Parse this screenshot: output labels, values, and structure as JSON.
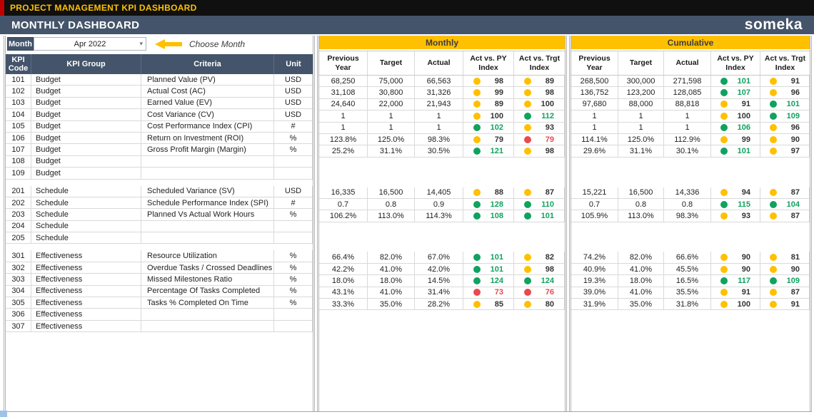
{
  "title_bar": {
    "title": "PROJECT MANAGEMENT KPI DASHBOARD"
  },
  "header": {
    "title": "MONTHLY DASHBOARD",
    "logo": "someka"
  },
  "month_selector": {
    "label": "Month",
    "value": "Apr 2022",
    "hint": "Choose Month"
  },
  "sections": {
    "monthly": "Monthly",
    "cumulative": "Cumulative"
  },
  "left_headers": [
    "KPI Code",
    "KPI Group",
    "Criteria",
    "Unit"
  ],
  "value_headers": [
    "Previous Year",
    "Target",
    "Actual",
    "Act vs. PY Index",
    "Act vs. Trgt Index"
  ],
  "colors": {
    "accent": "#FFC000",
    "header": "#44546A",
    "green": "#10A25F",
    "yellow": "#FFC000",
    "red": "#E9494F",
    "dark_text": "#333333"
  },
  "rows": [
    {
      "code": "101",
      "group": "Budget",
      "criteria": "Planned Value (PV)",
      "unit": "USD",
      "m": [
        "68,250",
        "75,000",
        "66,563"
      ],
      "mi": [
        [
          "98",
          "yellow"
        ],
        [
          "89",
          "yellow"
        ]
      ],
      "c": [
        "268,500",
        "300,000",
        "271,598"
      ],
      "ci": [
        [
          "101",
          "green"
        ],
        [
          "91",
          "yellow"
        ]
      ]
    },
    {
      "code": "102",
      "group": "Budget",
      "criteria": "Actual Cost (AC)",
      "unit": "USD",
      "m": [
        "31,108",
        "30,800",
        "31,326"
      ],
      "mi": [
        [
          "99",
          "yellow"
        ],
        [
          "98",
          "yellow"
        ]
      ],
      "c": [
        "136,752",
        "123,200",
        "128,085"
      ],
      "ci": [
        [
          "107",
          "green"
        ],
        [
          "96",
          "yellow"
        ]
      ]
    },
    {
      "code": "103",
      "group": "Budget",
      "criteria": "Earned Value (EV)",
      "unit": "USD",
      "m": [
        "24,640",
        "22,000",
        "21,943"
      ],
      "mi": [
        [
          "89",
          "yellow"
        ],
        [
          "100",
          "yellow"
        ]
      ],
      "c": [
        "97,680",
        "88,000",
        "88,818"
      ],
      "ci": [
        [
          "91",
          "yellow"
        ],
        [
          "101",
          "green"
        ]
      ]
    },
    {
      "code": "104",
      "group": "Budget",
      "criteria": "Cost Variance (CV)",
      "unit": "USD",
      "m": [
        "1",
        "1",
        "1"
      ],
      "mi": [
        [
          "100",
          "yellow"
        ],
        [
          "112",
          "green"
        ]
      ],
      "c": [
        "1",
        "1",
        "1"
      ],
      "ci": [
        [
          "100",
          "yellow"
        ],
        [
          "109",
          "green"
        ]
      ]
    },
    {
      "code": "105",
      "group": "Budget",
      "criteria": "Cost Performance Index (CPI)",
      "unit": "#",
      "m": [
        "1",
        "1",
        "1"
      ],
      "mi": [
        [
          "102",
          "green"
        ],
        [
          "93",
          "yellow"
        ]
      ],
      "c": [
        "1",
        "1",
        "1"
      ],
      "ci": [
        [
          "106",
          "green"
        ],
        [
          "96",
          "yellow"
        ]
      ]
    },
    {
      "code": "106",
      "group": "Budget",
      "criteria": "Return on Investment (ROI)",
      "unit": "%",
      "m": [
        "123.8%",
        "125.0%",
        "98.3%"
      ],
      "mi": [
        [
          "79",
          "yellow"
        ],
        [
          "79",
          "red"
        ]
      ],
      "c": [
        "114.1%",
        "125.0%",
        "112.9%"
      ],
      "ci": [
        [
          "99",
          "yellow"
        ],
        [
          "90",
          "yellow"
        ]
      ]
    },
    {
      "code": "107",
      "group": "Budget",
      "criteria": "Gross Profit Margin (Margin)",
      "unit": "%",
      "m": [
        "25.2%",
        "31.1%",
        "30.5%"
      ],
      "mi": [
        [
          "121",
          "green"
        ],
        [
          "98",
          "yellow"
        ]
      ],
      "c": [
        "29.6%",
        "31.1%",
        "30.1%"
      ],
      "ci": [
        [
          "101",
          "green"
        ],
        [
          "97",
          "yellow"
        ]
      ]
    },
    {
      "code": "108",
      "group": "Budget",
      "criteria": "",
      "unit": ""
    },
    {
      "code": "109",
      "group": "Budget",
      "criteria": "",
      "unit": ""
    },
    {
      "type": "spacer"
    },
    {
      "code": "201",
      "group": "Schedule",
      "criteria": "Scheduled Variance (SV)",
      "unit": "USD",
      "m": [
        "16,335",
        "16,500",
        "14,405"
      ],
      "mi": [
        [
          "88",
          "yellow"
        ],
        [
          "87",
          "yellow"
        ]
      ],
      "c": [
        "15,221",
        "16,500",
        "14,336"
      ],
      "ci": [
        [
          "94",
          "yellow"
        ],
        [
          "87",
          "yellow"
        ]
      ]
    },
    {
      "code": "202",
      "group": "Schedule",
      "criteria": "Schedule Performance Index (SPI)",
      "unit": "#",
      "m": [
        "0.7",
        "0.8",
        "0.9"
      ],
      "mi": [
        [
          "128",
          "green"
        ],
        [
          "110",
          "green"
        ]
      ],
      "c": [
        "0.7",
        "0.8",
        "0.8"
      ],
      "ci": [
        [
          "115",
          "green"
        ],
        [
          "104",
          "green"
        ]
      ]
    },
    {
      "code": "203",
      "group": "Schedule",
      "criteria": "Planned Vs Actual Work Hours",
      "unit": "%",
      "m": [
        "106.2%",
        "113.0%",
        "114.3%"
      ],
      "mi": [
        [
          "108",
          "green"
        ],
        [
          "101",
          "green"
        ]
      ],
      "c": [
        "105.9%",
        "113.0%",
        "98.3%"
      ],
      "ci": [
        [
          "93",
          "yellow"
        ],
        [
          "87",
          "yellow"
        ]
      ]
    },
    {
      "code": "204",
      "group": "Schedule",
      "criteria": "",
      "unit": ""
    },
    {
      "code": "205",
      "group": "Schedule",
      "criteria": "",
      "unit": ""
    },
    {
      "type": "spacer"
    },
    {
      "code": "301",
      "group": "Effectiveness",
      "criteria": "Resource Utilization",
      "unit": "%",
      "m": [
        "66.4%",
        "82.0%",
        "67.0%"
      ],
      "mi": [
        [
          "101",
          "green"
        ],
        [
          "82",
          "yellow"
        ]
      ],
      "c": [
        "74.2%",
        "82.0%",
        "66.6%"
      ],
      "ci": [
        [
          "90",
          "yellow"
        ],
        [
          "81",
          "yellow"
        ]
      ]
    },
    {
      "code": "302",
      "group": "Effectiveness",
      "criteria": "Overdue Tasks / Crossed Deadlines",
      "unit": "%",
      "m": [
        "42.2%",
        "41.0%",
        "42.0%"
      ],
      "mi": [
        [
          "101",
          "green"
        ],
        [
          "98",
          "yellow"
        ]
      ],
      "c": [
        "40.9%",
        "41.0%",
        "45.5%"
      ],
      "ci": [
        [
          "90",
          "yellow"
        ],
        [
          "90",
          "yellow"
        ]
      ]
    },
    {
      "code": "303",
      "group": "Effectiveness",
      "criteria": "Missed Milestones Ratio",
      "unit": "%",
      "m": [
        "18.0%",
        "18.0%",
        "14.5%"
      ],
      "mi": [
        [
          "124",
          "green"
        ],
        [
          "124",
          "green"
        ]
      ],
      "c": [
        "19.3%",
        "18.0%",
        "16.5%"
      ],
      "ci": [
        [
          "117",
          "green"
        ],
        [
          "109",
          "green"
        ]
      ]
    },
    {
      "code": "304",
      "group": "Effectiveness",
      "criteria": "Percentage Of Tasks Completed",
      "unit": "%",
      "m": [
        "43.1%",
        "41.0%",
        "31.4%"
      ],
      "mi": [
        [
          "73",
          "red"
        ],
        [
          "76",
          "red"
        ]
      ],
      "c": [
        "39.0%",
        "41.0%",
        "35.5%"
      ],
      "ci": [
        [
          "91",
          "yellow"
        ],
        [
          "87",
          "yellow"
        ]
      ]
    },
    {
      "code": "305",
      "group": "Effectiveness",
      "criteria": "Tasks % Completed On Time",
      "unit": "%",
      "m": [
        "33.3%",
        "35.0%",
        "28.2%"
      ],
      "mi": [
        [
          "85",
          "yellow"
        ],
        [
          "80",
          "yellow"
        ]
      ],
      "c": [
        "31.9%",
        "35.0%",
        "31.8%"
      ],
      "ci": [
        [
          "100",
          "yellow"
        ],
        [
          "91",
          "yellow"
        ]
      ]
    },
    {
      "code": "306",
      "group": "Effectiveness",
      "criteria": "",
      "unit": ""
    },
    {
      "code": "307",
      "group": "Effectiveness",
      "criteria": "",
      "unit": ""
    }
  ]
}
